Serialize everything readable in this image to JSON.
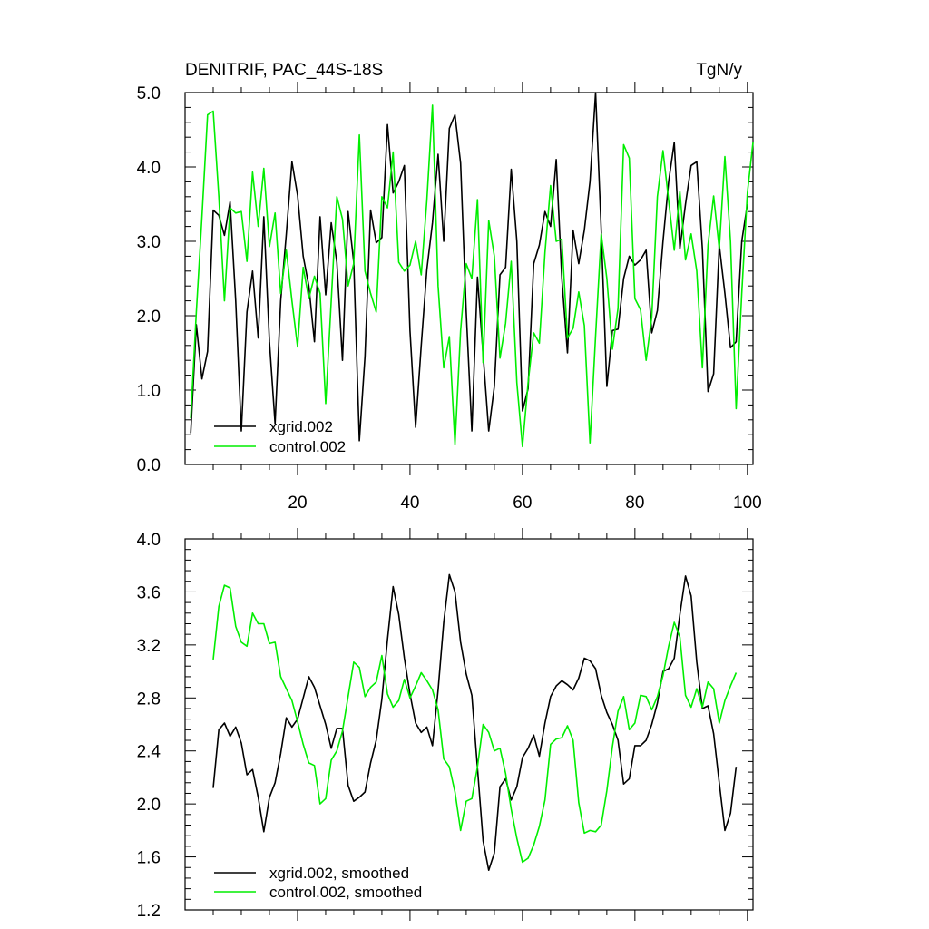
{
  "chart_data": [
    {
      "type": "line",
      "title": "DENITRIF, PAC_44S-18S",
      "units": "TgN/y",
      "xlabel": "",
      "ylabel": "",
      "xlim": [
        0,
        101
      ],
      "ylim": [
        0,
        5
      ],
      "xticks": [
        20,
        40,
        60,
        80,
        100
      ],
      "xtick_labels": [
        "20",
        "40",
        "60",
        "80",
        "100"
      ],
      "yticks": [
        0,
        1,
        2,
        3,
        4,
        5
      ],
      "ytick_labels": [
        "0.0",
        "1.0",
        "2.0",
        "3.0",
        "4.0",
        "5.0"
      ],
      "legend_position": "bottom-left",
      "grid": false,
      "series": [
        {
          "name": "xgrid.002",
          "color": "#000000",
          "x_start": 1,
          "values": [
            0.42,
            1.88,
            1.15,
            1.52,
            3.42,
            3.35,
            3.08,
            3.53,
            2.2,
            0.45,
            2.05,
            2.6,
            1.7,
            3.33,
            1.65,
            0.55,
            2.2,
            3.1,
            4.07,
            3.62,
            2.8,
            2.4,
            1.65,
            3.33,
            2.28,
            3.25,
            2.72,
            1.4,
            3.4,
            2.72,
            0.32,
            1.45,
            3.42,
            2.98,
            3.05,
            4.57,
            3.65,
            3.8,
            4.02,
            1.8,
            0.5,
            1.6,
            2.62,
            3.25,
            4.17,
            3.0,
            4.52,
            4.7,
            4.05,
            2.05,
            0.45,
            2.52,
            1.48,
            0.45,
            1.05,
            2.55,
            2.65,
            3.97,
            3.0,
            0.72,
            1.02,
            2.7,
            2.95,
            3.4,
            3.2,
            4.1,
            2.5,
            1.5,
            3.15,
            2.7,
            3.15,
            3.8,
            5.0,
            3.15,
            1.05,
            1.8,
            1.82,
            2.5,
            2.8,
            2.68,
            2.75,
            2.88,
            1.77,
            2.07,
            3.0,
            3.8,
            4.33,
            2.9,
            3.5,
            4.02,
            4.07,
            2.9,
            0.98,
            1.22,
            2.95,
            2.3,
            1.57,
            1.65,
            3.0,
            3.5
          ]
        },
        {
          "name": "control.002",
          "color": "#00ee00",
          "x_start": 1,
          "values": [
            0.62,
            2.05,
            3.33,
            4.7,
            4.75,
            3.6,
            2.2,
            3.45,
            3.38,
            3.4,
            2.73,
            3.93,
            3.2,
            3.98,
            2.93,
            3.38,
            2.3,
            2.88,
            2.2,
            1.58,
            2.65,
            2.23,
            2.53,
            2.3,
            0.82,
            2.2,
            3.6,
            3.3,
            2.4,
            2.7,
            4.43,
            2.6,
            2.3,
            2.05,
            3.6,
            3.45,
            4.2,
            2.72,
            2.6,
            2.68,
            3.0,
            2.55,
            3.55,
            4.83,
            2.4,
            1.3,
            1.72,
            0.27,
            1.8,
            2.7,
            2.5,
            3.56,
            1.37,
            3.28,
            2.8,
            1.43,
            1.9,
            2.73,
            1.1,
            0.24,
            1.1,
            1.77,
            1.63,
            2.85,
            3.75,
            3.0,
            3.03,
            1.7,
            1.83,
            2.32,
            1.87,
            0.29,
            1.73,
            3.1,
            2.5,
            1.55,
            2.1,
            4.3,
            4.12,
            2.23,
            2.08,
            1.4,
            1.98,
            3.6,
            4.22,
            3.55,
            2.88,
            3.67,
            2.75,
            3.1,
            2.6,
            1.3,
            2.95,
            3.61,
            2.9,
            4.14,
            3.0,
            0.75,
            2.3,
            3.65,
            4.33
          ]
        }
      ]
    },
    {
      "type": "line",
      "title": "",
      "xlabel": "",
      "ylabel": "",
      "xlim": [
        0,
        101
      ],
      "ylim": [
        1.2,
        4.0
      ],
      "xticks": [
        20,
        40,
        60,
        80,
        100
      ],
      "xtick_labels": [],
      "yticks": [
        1.2,
        1.6,
        2.0,
        2.4,
        2.8,
        3.2,
        3.6,
        4.0
      ],
      "ytick_labels": [
        "1.2",
        "1.6",
        "2.0",
        "2.4",
        "2.8",
        "3.2",
        "3.6",
        "4.0"
      ],
      "legend_position": "bottom-left",
      "grid": false,
      "series": [
        {
          "name": "xgrid.002, smoothed",
          "color": "#000000",
          "x_start": 5,
          "values": [
            2.12,
            2.56,
            2.61,
            2.51,
            2.58,
            2.46,
            2.22,
            2.26,
            2.05,
            1.79,
            2.05,
            2.16,
            2.38,
            2.65,
            2.58,
            2.64,
            2.8,
            2.96,
            2.88,
            2.74,
            2.6,
            2.42,
            2.57,
            2.57,
            2.14,
            2.02,
            2.05,
            2.09,
            2.31,
            2.48,
            2.79,
            3.24,
            3.64,
            3.43,
            3.1,
            2.83,
            2.61,
            2.54,
            2.58,
            2.44,
            2.86,
            3.37,
            3.73,
            3.6,
            3.22,
            2.98,
            2.82,
            2.27,
            1.72,
            1.5,
            1.63,
            2.13,
            2.19,
            2.03,
            2.13,
            2.35,
            2.42,
            2.52,
            2.36,
            2.61,
            2.81,
            2.89,
            2.93,
            2.9,
            2.86,
            2.95,
            3.1,
            3.08,
            3.02,
            2.82,
            2.69,
            2.6,
            2.48,
            2.15,
            2.19,
            2.44,
            2.44,
            2.48,
            2.6,
            2.76,
            3.0,
            3.02,
            3.1,
            3.43,
            3.72,
            3.57,
            3.07,
            2.72,
            2.74,
            2.53,
            2.16,
            1.8,
            1.93,
            2.28
          ]
        },
        {
          "name": "control.002, smoothed",
          "color": "#00ee00",
          "x_start": 5,
          "values": [
            3.09,
            3.49,
            3.65,
            3.63,
            3.34,
            3.22,
            3.19,
            3.44,
            3.36,
            3.36,
            3.21,
            3.22,
            2.96,
            2.87,
            2.78,
            2.62,
            2.45,
            2.31,
            2.29,
            2.0,
            2.04,
            2.33,
            2.4,
            2.55,
            2.81,
            3.07,
            3.03,
            2.81,
            2.88,
            2.92,
            3.12,
            2.83,
            2.73,
            2.78,
            2.94,
            2.8,
            2.89,
            2.99,
            2.93,
            2.86,
            2.71,
            2.34,
            2.28,
            2.09,
            1.8,
            2.02,
            2.04,
            2.28,
            2.6,
            2.54,
            2.4,
            2.42,
            2.23,
            1.96,
            1.74,
            1.56,
            1.59,
            1.69,
            1.83,
            2.03,
            2.45,
            2.49,
            2.5,
            2.59,
            2.48,
            2.01,
            1.78,
            1.8,
            1.79,
            1.84,
            2.1,
            2.43,
            2.7,
            2.81,
            2.56,
            2.61,
            2.82,
            2.81,
            2.71,
            2.81,
            2.97,
            3.19,
            3.37,
            3.26,
            2.82,
            2.73,
            2.87,
            2.73,
            2.92,
            2.87,
            2.61,
            2.78,
            2.89,
            2.99
          ]
        }
      ]
    }
  ]
}
